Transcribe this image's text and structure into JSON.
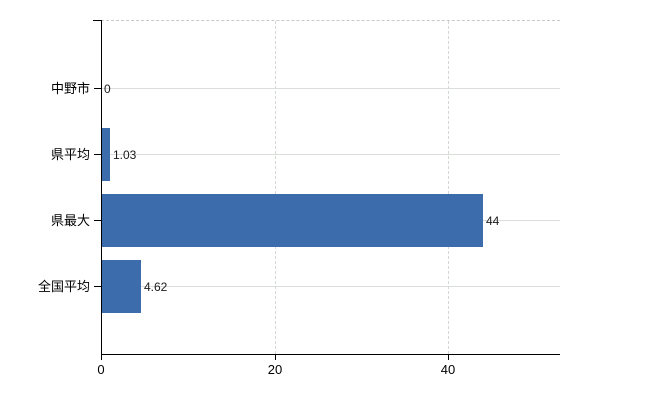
{
  "chart_data": {
    "type": "bar",
    "orientation": "horizontal",
    "title": "",
    "xlabel": "",
    "ylabel": "",
    "categories": [
      "中野市",
      "県平均",
      "県最大",
      "全国平均"
    ],
    "values": [
      0,
      1.03,
      44,
      4.62
    ],
    "value_labels": [
      "0",
      "1.03",
      "44",
      "4.62"
    ],
    "x_ticks": [
      0,
      20,
      40
    ],
    "x_tick_labels": [
      "0",
      "20",
      "40"
    ],
    "xlim": [
      0,
      53
    ],
    "grid": true,
    "legend_position": "none",
    "bar_color": "#3c6cac",
    "hgrid_color": "#d9ded9",
    "vgrid_color": "#d4d8d4",
    "axis_color": "#000000",
    "background_color": "#ffffff"
  }
}
